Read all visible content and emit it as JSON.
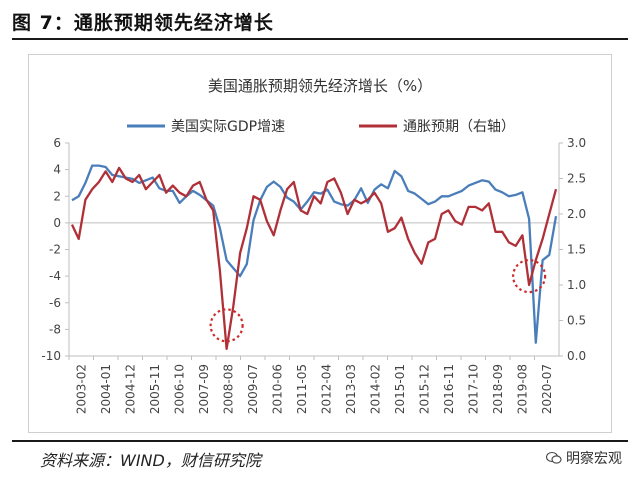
{
  "header": {
    "figure_title": "图 7：通胀预期领先经济增长"
  },
  "footer": {
    "source": "资料来源：WIND，财信研究院",
    "watermark": "明察宏观",
    "watermark_icon": "wechat-icon"
  },
  "chart_data": {
    "type": "line",
    "title": "美国通胀预期领先经济增长（%）",
    "x_tick_labels": [
      "2003-02",
      "2004-01",
      "2004-12",
      "2005-11",
      "2006-10",
      "2007-09",
      "2008-08",
      "2009-07",
      "2010-06",
      "2011-05",
      "2012-04",
      "2013-03",
      "2014-02",
      "2015-01",
      "2015-12",
      "2016-11",
      "2017-10",
      "2018-09",
      "2019-08",
      "2020-07"
    ],
    "y_left": {
      "lim": [
        -10,
        6
      ],
      "ticks": [
        6,
        4,
        2,
        0,
        -2,
        -4,
        -6,
        -8,
        -10
      ]
    },
    "y_right": {
      "lim": [
        0.0,
        3.0
      ],
      "ticks": [
        "3.0",
        "2.5",
        "2.0",
        "1.5",
        "1.0",
        "0.5",
        "0.0"
      ]
    },
    "x": [
      "2003-02",
      "2003-06",
      "2003-09",
      "2003-12",
      "2004-03",
      "2004-06",
      "2004-09",
      "2004-12",
      "2005-03",
      "2005-06",
      "2005-09",
      "2005-12",
      "2006-03",
      "2006-06",
      "2006-09",
      "2006-12",
      "2007-03",
      "2007-06",
      "2007-09",
      "2007-12",
      "2008-03",
      "2008-06",
      "2008-09",
      "2008-12",
      "2009-03",
      "2009-06",
      "2009-09",
      "2009-12",
      "2010-03",
      "2010-06",
      "2010-09",
      "2010-12",
      "2011-03",
      "2011-06",
      "2011-09",
      "2011-12",
      "2012-03",
      "2012-06",
      "2012-09",
      "2012-12",
      "2013-03",
      "2013-06",
      "2013-09",
      "2013-12",
      "2014-03",
      "2014-06",
      "2014-09",
      "2014-12",
      "2015-03",
      "2015-06",
      "2015-09",
      "2015-12",
      "2016-03",
      "2016-06",
      "2016-09",
      "2016-12",
      "2017-03",
      "2017-06",
      "2017-09",
      "2017-12",
      "2018-03",
      "2018-06",
      "2018-09",
      "2018-12",
      "2019-03",
      "2019-06",
      "2019-09",
      "2019-12",
      "2020-03",
      "2020-06",
      "2020-09",
      "2020-12",
      "2021-03"
    ],
    "series": [
      {
        "name": "美国实际GDP增速",
        "axis": "left",
        "color": "#4a7ebb",
        "values": [
          1.7,
          2.0,
          3.0,
          4.3,
          4.3,
          4.2,
          3.6,
          3.5,
          3.4,
          3.3,
          3.0,
          3.2,
          3.4,
          2.6,
          2.4,
          2.4,
          1.5,
          2.0,
          2.4,
          2.1,
          1.7,
          1.3,
          -0.4,
          -2.8,
          -3.4,
          -4.0,
          -3.1,
          0.2,
          1.7,
          2.7,
          3.1,
          2.7,
          1.9,
          1.6,
          1.0,
          1.6,
          2.3,
          2.2,
          2.5,
          1.6,
          1.4,
          1.3,
          1.7,
          2.6,
          1.5,
          2.5,
          2.9,
          2.6,
          3.9,
          3.5,
          2.4,
          2.2,
          1.8,
          1.4,
          1.6,
          2.0,
          2.0,
          2.2,
          2.4,
          2.8,
          3.0,
          3.2,
          3.1,
          2.5,
          2.3,
          2.0,
          2.1,
          2.3,
          0.3,
          -9.0,
          -2.8,
          -2.4,
          0.5
        ]
      },
      {
        "name": "通胀预期（右轴）",
        "axis": "right",
        "color": "#b03038",
        "values": [
          1.85,
          1.65,
          2.2,
          2.35,
          2.45,
          2.6,
          2.45,
          2.65,
          2.5,
          2.45,
          2.55,
          2.35,
          2.45,
          2.55,
          2.3,
          2.4,
          2.3,
          2.25,
          2.4,
          2.45,
          2.2,
          2.05,
          1.2,
          0.1,
          0.7,
          1.45,
          1.8,
          2.25,
          2.2,
          1.9,
          1.7,
          2.05,
          2.35,
          2.45,
          2.05,
          2.0,
          2.25,
          2.15,
          2.45,
          2.5,
          2.3,
          2.0,
          2.2,
          2.15,
          2.2,
          2.3,
          2.15,
          1.75,
          1.8,
          1.95,
          1.65,
          1.45,
          1.3,
          1.6,
          1.65,
          2.0,
          2.05,
          1.9,
          1.85,
          2.1,
          2.1,
          2.05,
          2.15,
          1.75,
          1.75,
          1.6,
          1.55,
          1.7,
          1.0,
          1.35,
          1.65,
          2.0,
          2.35
        ]
      }
    ],
    "annotations": [
      {
        "type": "dotted-circle",
        "x": "2008-12",
        "y_axis": "left",
        "y": -7.7,
        "color": "#cc2a2a"
      },
      {
        "type": "dotted-circle",
        "x": "2020-03",
        "y_axis": "left",
        "y": -4.0,
        "color": "#cc2a2a"
      }
    ],
    "legend_position": "top",
    "grid": false
  }
}
